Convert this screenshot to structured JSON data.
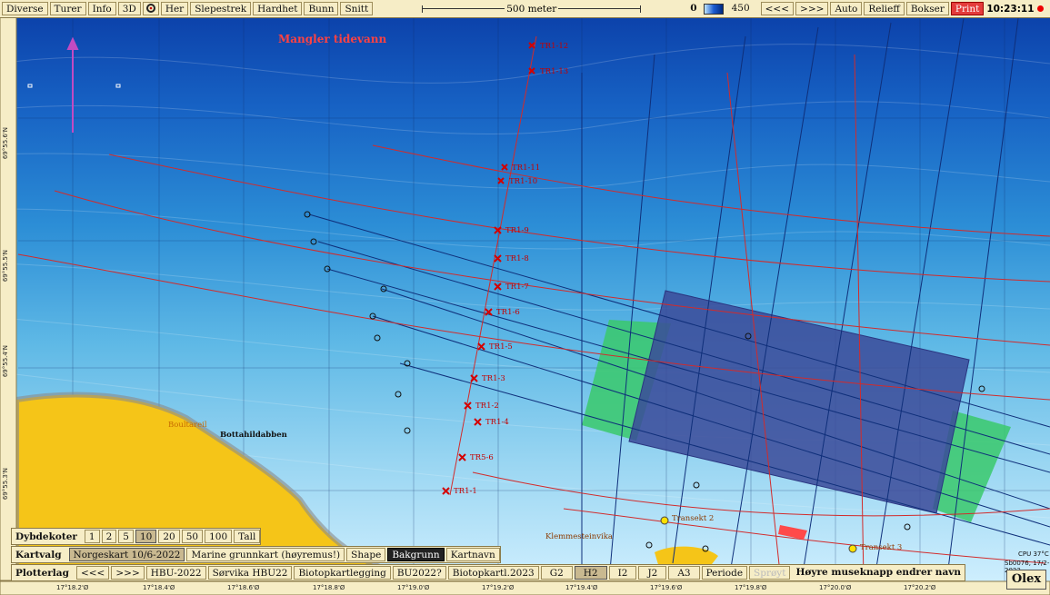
{
  "toolbar": {
    "left_buttons": [
      "Diverse",
      "Turer",
      "Info",
      "3D",
      "Her",
      "Slepestrek",
      "Hardhet",
      "Bunn",
      "Snitt"
    ],
    "scale_label": "500 meter",
    "depth_min": "0",
    "depth_max": "450",
    "right_buttons": [
      "<<<",
      ">>>",
      "Auto",
      "Relieff",
      "Bokser",
      "Print"
    ],
    "clock": "10:23:11"
  },
  "map": {
    "title_label": "Mangler tidevann",
    "place_labels": [
      "Bottahildabben",
      "Boultareil",
      "Klemmesteinvika"
    ],
    "station_labels": [
      "TR1-12",
      "TR1-13",
      "TR1-11",
      "TR1-10",
      "TR1-9",
      "TR1-8",
      "TR1-7",
      "TR1-6",
      "TR1-5",
      "TR1-3",
      "TR1-2",
      "TR1-4",
      "TR5-6",
      "TR1-1"
    ],
    "transect_labels": [
      "Transekt 2",
      "Transekt 3"
    ],
    "lat_ticks": [
      "69°55.6'N",
      "69°55.5'N",
      "69°55.4'N",
      "69°55.3'N"
    ],
    "lon_ticks": [
      "17°18.2'Ø",
      "17°18.4'Ø",
      "17°18.6'Ø",
      "17°18.8'Ø",
      "17°19.0'Ø",
      "17°19.2'Ø",
      "17°19.4'Ø",
      "17°19.6'Ø",
      "17°19.8'Ø",
      "17°20.0'Ø",
      "17°20.2'Ø"
    ],
    "info_text": [
      "CPU 37°C",
      "Sb0076, 17/2-2023"
    ]
  },
  "panels": {
    "dybdekoter": {
      "label": "Dybdekoter",
      "options": [
        "1",
        "2",
        "5",
        "10",
        "20",
        "50",
        "100",
        "Tall"
      ],
      "active": "10"
    },
    "kartvalg": {
      "label": "Kartvalg",
      "options": [
        "Norgeskart 10/6-2022",
        "Marine grunnkart (høyremus!)",
        "Shape",
        "Bakgrunn",
        "Kartnavn"
      ],
      "active": "Bakgrunn"
    },
    "plotterlag": {
      "label": "Plotterlag",
      "options": [
        "<<<",
        ">>>",
        "HBU-2022",
        "Sørvika HBU22",
        "Biotopkartlegging",
        "BU2022?",
        "Biotopkartl.2023",
        "G2",
        "H2",
        "I2",
        "J2",
        "A3",
        "Periode",
        "Sprøyt"
      ],
      "active": "H2",
      "hint": "Høyre museknapp endrer navn"
    }
  },
  "logo": "Olex",
  "colors": {
    "bar_bg": "#f6edc6",
    "land": "#f5c518",
    "shallow": "#c9ecff",
    "deep": "#0b3fa8",
    "route": "#d22b2b",
    "selection": "#3b4a99",
    "green_zone": "#39c96b"
  }
}
